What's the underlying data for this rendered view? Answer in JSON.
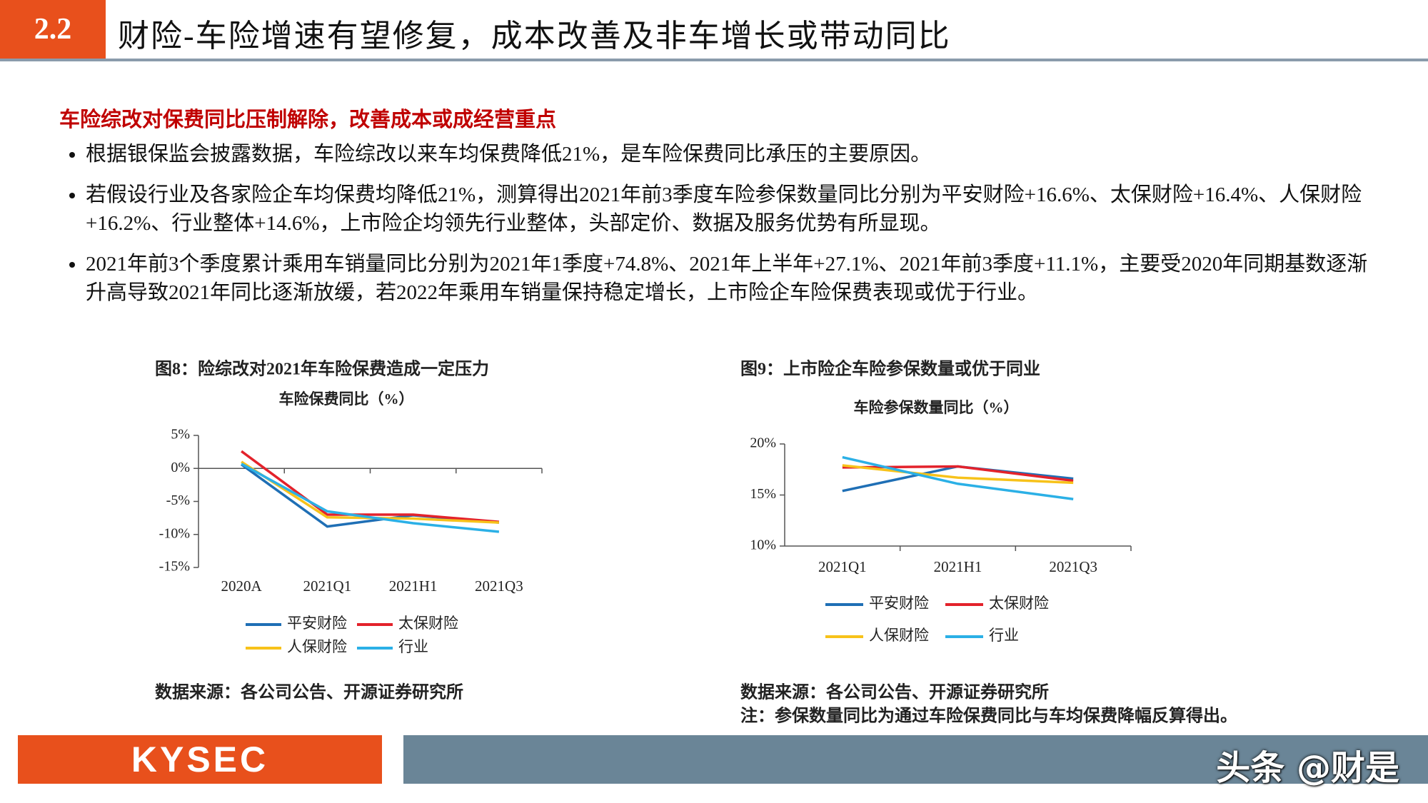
{
  "header": {
    "number": "2.2",
    "title": "财险-车险增速有望修复，成本改善及非车增长或带动同比"
  },
  "subtitle": "车险综改对保费同比压制解除，改善成本或成经营重点",
  "bullets": [
    "根据银保监会披露数据，车险综改以来车均保费降低21%，是车险保费同比承压的主要原因。",
    "若假设行业及各家险企车均保费均降低21%，测算得出2021年前3季度车险参保数量同比分别为平安财险+16.6%、太保财险+16.4%、人保财险+16.2%、行业整体+14.6%，上市险企均领先行业整体，头部定价、数据及服务优势有所显现。",
    "2021年前3个季度累计乘用车销量同比分别为2021年1季度+74.8%、2021年上半年+27.1%、2021年前3季度+11.1%，主要受2020年同期基数逐渐升高导致2021年同比逐渐放缓，若2022年乘用车销量保持稳定增长，上市险企车险保费表现或优于行业。"
  ],
  "chart_data": [
    {
      "type": "line",
      "title": "图8：险综改对2021年车险保费造成一定压力",
      "subtitle": "车险保费同比（%）",
      "categories": [
        "2020A",
        "2021Q1",
        "2021H1",
        "2021Q3"
      ],
      "series": [
        {
          "name": "平安财险",
          "color": "#1f6fb5",
          "values": [
            0.6,
            -8.8,
            -7.1,
            -8.2
          ]
        },
        {
          "name": "太保财险",
          "color": "#e3222b",
          "values": [
            2.6,
            -7.0,
            -7.0,
            -8.1
          ]
        },
        {
          "name": "人保财险",
          "color": "#f7c21a",
          "values": [
            1.0,
            -7.4,
            -7.6,
            -8.2
          ]
        },
        {
          "name": "行业",
          "color": "#2bb0e6",
          "values": [
            0.7,
            -6.5,
            -8.3,
            -9.6
          ]
        }
      ],
      "ylim": [
        -15,
        5
      ],
      "yticks": [
        {
          "value": -15,
          "label": "-15%"
        },
        {
          "value": -10,
          "label": "-10%"
        },
        {
          "value": -5,
          "label": "-5%"
        },
        {
          "value": 0,
          "label": "0%"
        },
        {
          "value": 5,
          "label": "5%"
        }
      ],
      "source": "数据来源：各公司公告、开源证券研究所"
    },
    {
      "type": "line",
      "title": "图9：上市险企车险参保数量或优于同业",
      "subtitle": "车险参保数量同比（%）",
      "categories": [
        "2021Q1",
        "2021H1",
        "2021Q3"
      ],
      "series": [
        {
          "name": "平安财险",
          "color": "#1f6fb5",
          "values": [
            15.4,
            17.8,
            16.6
          ]
        },
        {
          "name": "太保财险",
          "color": "#e3222b",
          "values": [
            17.7,
            17.8,
            16.4
          ]
        },
        {
          "name": "人保财险",
          "color": "#f7c21a",
          "values": [
            17.9,
            16.7,
            16.2
          ]
        },
        {
          "name": "行业",
          "color": "#2bb0e6",
          "values": [
            18.7,
            16.1,
            14.6
          ]
        }
      ],
      "ylim": [
        10,
        20
      ],
      "yticks": [
        {
          "value": 10,
          "label": "10%"
        },
        {
          "value": 15,
          "label": "15%"
        },
        {
          "value": 20,
          "label": "20%"
        }
      ],
      "source": "数据来源：各公司公告、开源证券研究所",
      "note": "注：参保数量同比为通过车险保费同比与车均保费降幅反算得出。"
    }
  ],
  "footer": {
    "logo": "KYSEC",
    "watermark": "头条 @财是"
  }
}
